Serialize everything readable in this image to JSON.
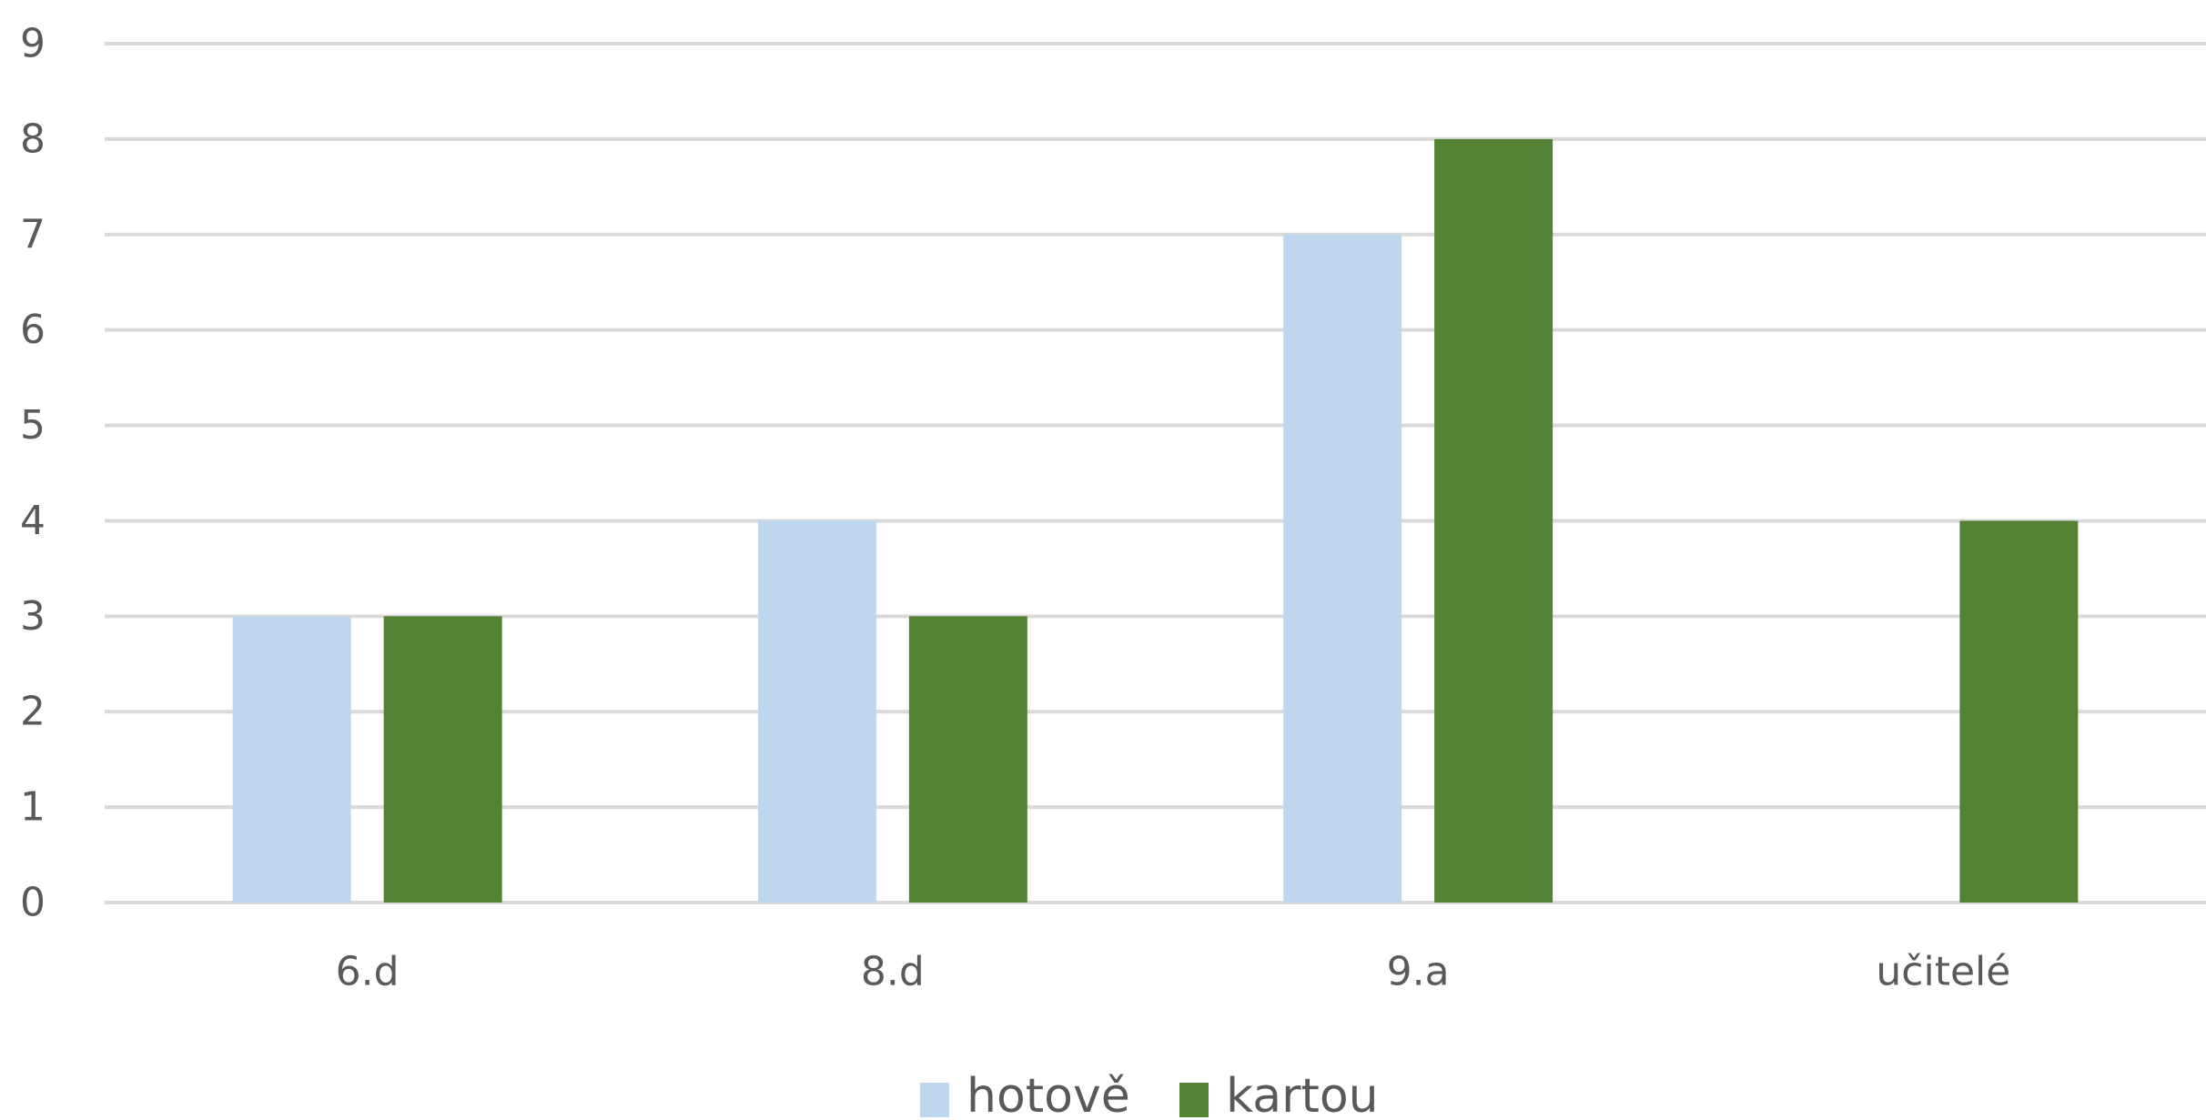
{
  "chart_data": {
    "type": "bar",
    "title": "",
    "xlabel": "",
    "ylabel": "",
    "categories": [
      "6.d",
      "8.d",
      "9.a",
      "učitelé"
    ],
    "series": [
      {
        "name": "hotově",
        "values": [
          3,
          4,
          7,
          0
        ],
        "color": "#bdd7ee"
      },
      {
        "name": "kartou",
        "values": [
          3,
          3,
          8,
          4
        ],
        "color": "#548235"
      }
    ],
    "ylim": [
      0,
      9
    ],
    "yticks": [
      "0",
      "1",
      "2",
      "3",
      "4",
      "5",
      "6",
      "7",
      "8",
      "9"
    ],
    "grid": true,
    "legend_position": "bottom"
  }
}
